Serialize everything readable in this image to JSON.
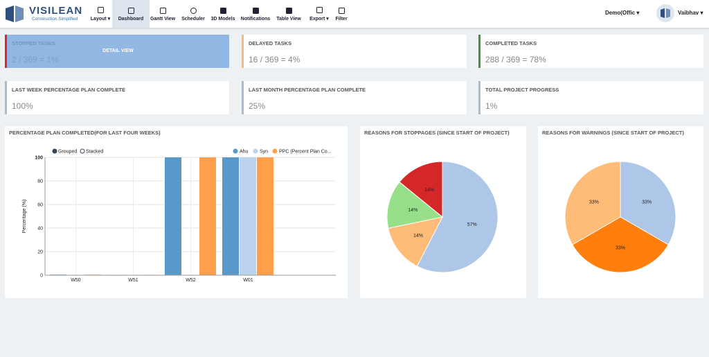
{
  "header": {
    "logo": {
      "name": "VISILEAN",
      "tagline": "Construction.Simplified"
    },
    "nav": [
      "Layout",
      "Dashboard",
      "Gantt View",
      "Scheduler",
      "3D Models",
      "Notifications",
      "Table View",
      "Export",
      "Filter"
    ],
    "project": "Demo(Offic",
    "user": "Vaibhav"
  },
  "cards": [
    {
      "title": "STOPPED TASKS",
      "value": "2 / 369 = 1%",
      "overlay": "DETAIL VIEW"
    },
    {
      "title": "DELAYED TASKS",
      "value": "16 / 369 = 4%"
    },
    {
      "title": "COMPLETED TASKS",
      "value": "288 / 369 = 78%"
    },
    {
      "title": "LAST WEEK PERCENTAGE PLAN COMPLETE",
      "value": "100%"
    },
    {
      "title": "LAST MONTH PERCENTAGE PLAN COMPLETE",
      "value": "25%"
    },
    {
      "title": "TOTAL PROJECT PROGRESS",
      "value": "1%"
    }
  ],
  "charts": {
    "ppc": {
      "type": "bar",
      "title": "PERCENTAGE PLAN COMPLETED(FOR LAST FOUR WEEKS)",
      "controls": [
        "Grouped",
        "Stacked"
      ],
      "y_label": "Percentage (%)",
      "categories": [
        "W50",
        "W51",
        "W52",
        "W01"
      ],
      "series": [
        {
          "name": "Ahu",
          "color": "#5899c9",
          "values": [
            0.5,
            0,
            100,
            100
          ]
        },
        {
          "name": "Syn",
          "color": "#bcd3ee",
          "values": [
            0,
            0,
            0,
            100
          ]
        },
        {
          "name": "PPC (Percent Plan Co...",
          "color": "#ff9f4a",
          "values": [
            0.5,
            0,
            100,
            100
          ]
        }
      ],
      "ylim": [
        0,
        100
      ],
      "yticks": [
        0,
        20,
        40,
        60,
        80,
        100
      ],
      "grid": true
    },
    "stoppages": {
      "type": "pie",
      "title": "REASONS FOR STOPPAGES (SINCE START OF PROJECT)",
      "values": [
        57,
        14,
        14,
        14
      ],
      "value_labels": [
        "57%",
        "14%",
        "14%",
        "14%"
      ],
      "colors": [
        "#aec7e8",
        "#ffbb78",
        "#98df8a",
        "#d62728"
      ]
    },
    "warnings": {
      "type": "pie",
      "title": "REASONS FOR WARNINGS (SINCE START OF PROJECT)",
      "values": [
        33,
        33,
        33
      ],
      "value_labels": [
        "33%",
        "33%",
        "33%"
      ],
      "colors": [
        "#aec7e8",
        "#ff7f0e",
        "#ffbb78"
      ]
    }
  }
}
